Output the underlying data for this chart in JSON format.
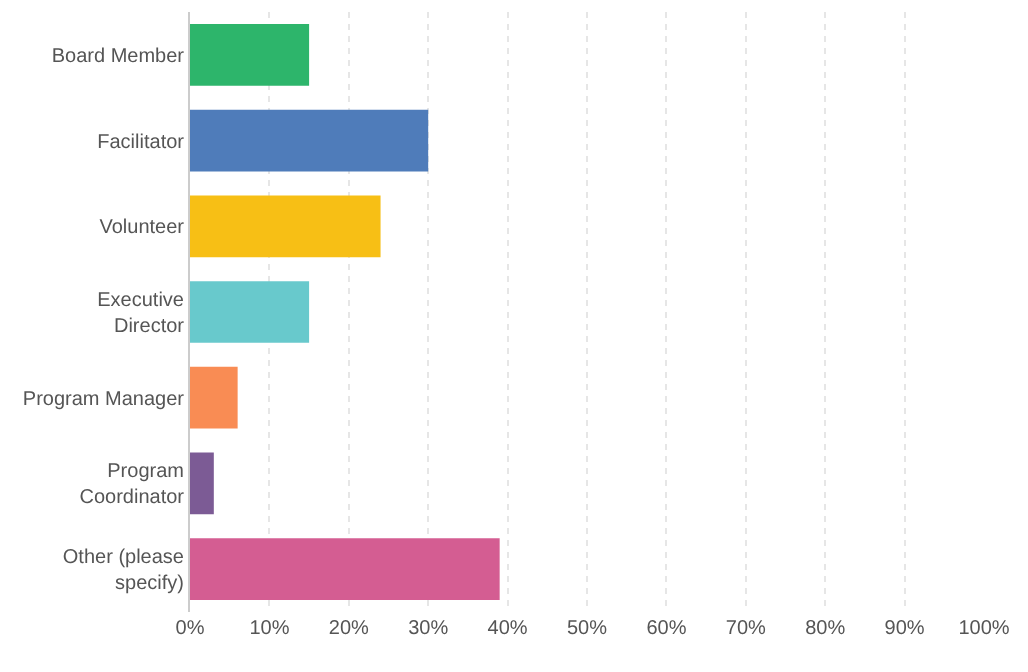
{
  "chart_data": {
    "type": "bar",
    "orientation": "horizontal",
    "categories": [
      "Board Member",
      "Facilitator",
      "Volunteer",
      "Executive\nDirector",
      "Program Manager",
      "Program\nCoordinator",
      "Other (please\nspecify)"
    ],
    "values": [
      15,
      30,
      24,
      15,
      6,
      3,
      39
    ],
    "colors": [
      "#2db56b",
      "#4f7cba",
      "#f7bf15",
      "#68c9cc",
      "#f98c54",
      "#7c5b95",
      "#d45d92"
    ],
    "xlim": [
      0,
      100
    ],
    "xticks": [
      {
        "value": 0,
        "label": "0%"
      },
      {
        "value": 10,
        "label": "10%"
      },
      {
        "value": 20,
        "label": "20%"
      },
      {
        "value": 30,
        "label": "30%"
      },
      {
        "value": 40,
        "label": "40%"
      },
      {
        "value": 50,
        "label": "50%"
      },
      {
        "value": 60,
        "label": "60%"
      },
      {
        "value": 70,
        "label": "70%"
      },
      {
        "value": 80,
        "label": "80%"
      },
      {
        "value": 90,
        "label": "90%"
      },
      {
        "value": 100,
        "label": "100%"
      }
    ],
    "grid": "x"
  }
}
